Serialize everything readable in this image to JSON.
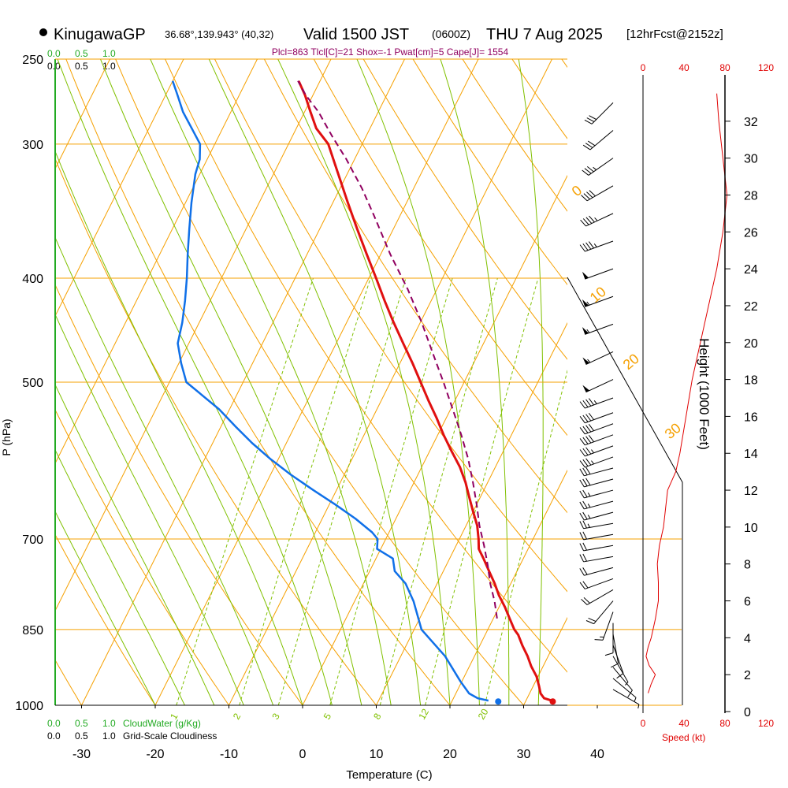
{
  "header": {
    "site_name": "KinugawaGP",
    "site_coords": "36.68°,139.943° (40,32)",
    "valid_main": "Valid 1500 JST",
    "valid_utc": "(0600Z)",
    "valid_date": "THU 7 Aug 2025",
    "forecast_tag": "[12hrFcst@2152z]",
    "indices": "Plcl=863 Tlcl[C]=21 Shox=-1 Pwat[cm]=5 Cape[J]= 1554"
  },
  "colors": {
    "isotherm": "#f5a000",
    "dry_adiabat": "#f5a000",
    "moist_adiabat": "#80c000",
    "mixing_ratio": "#80c000",
    "temperature": "#e01010",
    "dewpoint": "#1070e8",
    "parcel": "#900060",
    "indices": "#900060",
    "cloud_scale": "#22aa22",
    "wind": "#000000",
    "speed": "#e00000"
  },
  "chart_data": {
    "type": "line",
    "title": "Skew-T log-P sounding",
    "xlabel": "Temperature (C)",
    "ylabel": "P (hPa)",
    "xlim": [
      -35,
      45
    ],
    "ylim": [
      1000,
      250
    ],
    "x_ticks": [
      "-30",
      "-20",
      "-10",
      "0",
      "10",
      "20",
      "30",
      "40"
    ],
    "x_tick_values": [
      -30,
      -20,
      -10,
      0,
      10,
      20,
      30,
      40
    ],
    "p_ticks": [
      "250",
      "300",
      "400",
      "500",
      "700",
      "850",
      "1000"
    ],
    "p_tick_values": [
      250,
      300,
      400,
      500,
      700,
      850,
      1000
    ],
    "isotherm_labels": [
      {
        "text": "10",
        "value": 10
      },
      {
        "text": "0",
        "value": 0
      },
      {
        "text": "-10",
        "value": -10
      },
      {
        "text": "-20",
        "value": -20
      },
      {
        "text": "-30",
        "value": -30
      }
    ],
    "dry_adiabat_labels": [
      "0",
      "10",
      "20",
      "30"
    ],
    "mixing_ratio_labels": [
      "1",
      "2",
      "3",
      "5",
      "8",
      "12",
      "20"
    ],
    "series": [
      {
        "name": "temperature",
        "pressure": [
          990,
          985,
          975,
          960,
          940,
          920,
          900,
          880,
          860,
          850,
          830,
          810,
          790,
          770,
          750,
          730,
          715,
          700,
          680,
          660,
          640,
          620,
          600,
          580,
          560,
          540,
          520,
          500,
          480,
          460,
          440,
          420,
          400,
          380,
          360,
          340,
          320,
          300,
          290,
          280,
          270,
          262
        ],
        "temp_c": [
          33.5,
          32.3,
          31.5,
          30.8,
          29.8,
          28.4,
          27.2,
          25.8,
          24.5,
          23.6,
          22.2,
          20.8,
          19.2,
          17.8,
          16.2,
          14.6,
          13.3,
          12.6,
          11.5,
          10.0,
          8.5,
          7.0,
          5.2,
          3.0,
          0.8,
          -1.3,
          -3.6,
          -5.9,
          -8.3,
          -10.9,
          -13.6,
          -16.3,
          -19.0,
          -21.9,
          -24.9,
          -28.0,
          -31.2,
          -34.6,
          -37.3,
          -39.2,
          -41.1,
          -42.9
        ]
      },
      {
        "name": "dewpoint",
        "pressure": [
          990,
          985,
          975,
          950,
          900,
          850,
          800,
          770,
          750,
          730,
          715,
          700,
          690,
          670,
          650,
          630,
          610,
          590,
          570,
          550,
          530,
          500,
          480,
          460,
          440,
          420,
          400,
          380,
          360,
          340,
          320,
          310,
          300,
          290,
          280,
          270,
          262
        ],
        "temp_c": [
          24.9,
          23.3,
          21.8,
          19.8,
          16.0,
          11.0,
          8.0,
          5.7,
          3.4,
          2.3,
          -0.5,
          -1.1,
          -2.3,
          -5.5,
          -9.2,
          -13.2,
          -17.2,
          -21.0,
          -24.6,
          -28.0,
          -31.4,
          -37.7,
          -39.7,
          -41.5,
          -42.3,
          -43.4,
          -44.7,
          -46.2,
          -47.7,
          -49.2,
          -50.6,
          -51.0,
          -52.0,
          -54.2,
          -56.5,
          -58.4,
          -60.0
        ]
      },
      {
        "name": "parcel",
        "pressure": [
          830,
          800,
          770,
          740,
          710,
          680,
          650,
          620,
          590,
          560,
          530,
          500,
          470,
          440,
          410,
          380,
          350,
          330,
          310,
          295,
          280,
          270,
          262
        ],
        "temp_c": [
          20.5,
          19.0,
          17.2,
          15.6,
          13.8,
          11.8,
          10.0,
          8.0,
          5.8,
          3.2,
          0.3,
          -2.8,
          -6.2,
          -9.8,
          -13.9,
          -18.7,
          -23.5,
          -27.0,
          -31.1,
          -34.6,
          -38.1,
          -41.0,
          -43.0
        ]
      }
    ],
    "surface_points": [
      {
        "name": "surface-temperature",
        "temp_c": 33.7,
        "pressure": 992
      },
      {
        "name": "surface-dewpoint",
        "temp_c": 26.3,
        "pressure": 992
      }
    ],
    "height_axis": {
      "label": "Height (1000 Feet)",
      "ticks": [
        "0",
        "2",
        "4",
        "6",
        "8",
        "10",
        "12",
        "14",
        "16",
        "18",
        "20",
        "22",
        "24",
        "26",
        "28",
        "30",
        "32"
      ],
      "tick_values": [
        0,
        2,
        4,
        6,
        8,
        10,
        12,
        14,
        16,
        18,
        20,
        22,
        24,
        26,
        28,
        30,
        32
      ],
      "max": 34
    },
    "wind_speed_profile": {
      "axis_label": "Speed (kt)",
      "ticks": [
        "0",
        "40",
        "80",
        "120"
      ],
      "tick_values": [
        0,
        40,
        80,
        120
      ],
      "height_kft": [
        1.0,
        1.5,
        2.0,
        2.5,
        3.0,
        3.5,
        4.0,
        5.0,
        6.0,
        7.0,
        8.0,
        9.0,
        10.0,
        11.0,
        12.0,
        13.0,
        14.0,
        16.0,
        18.0,
        20.0,
        22.0,
        24.0,
        26.0,
        28.0,
        30.0,
        32.0,
        33.5
      ],
      "speed_kt": [
        5,
        8,
        12,
        6,
        3,
        5,
        8,
        12,
        15,
        15,
        14,
        16,
        20,
        22,
        24,
        32,
        36,
        42,
        48,
        56,
        64,
        72,
        78,
        82,
        78,
        74,
        72
      ]
    },
    "wind_barbs": {
      "height_kft": [
        1.2,
        1.8,
        2.4,
        3.0,
        3.6,
        4.2,
        4.8,
        5.4,
        6.0,
        6.6,
        7.2,
        7.8,
        8.4,
        9.0,
        9.6,
        10.2,
        10.8,
        11.4,
        12.0,
        12.6,
        13.2,
        13.8,
        14.4,
        15.0,
        15.6,
        16.2,
        17.0,
        18.0,
        19.5,
        21.0,
        22.5,
        24.0,
        25.5,
        27.0,
        28.5,
        30.0,
        31.5,
        33.0
      ],
      "dir_deg": [
        120,
        130,
        140,
        150,
        160,
        170,
        180,
        200,
        220,
        240,
        250,
        255,
        260,
        260,
        260,
        260,
        255,
        255,
        255,
        255,
        255,
        250,
        250,
        250,
        250,
        250,
        250,
        245,
        245,
        250,
        250,
        250,
        250,
        245,
        240,
        235,
        230,
        225
      ],
      "speed_kt": [
        5,
        5,
        10,
        5,
        10,
        10,
        10,
        15,
        20,
        20,
        20,
        20,
        20,
        20,
        20,
        25,
        25,
        25,
        25,
        30,
        30,
        35,
        35,
        40,
        40,
        40,
        45,
        50,
        55,
        55,
        55,
        50,
        45,
        45,
        40,
        35,
        30,
        30
      ]
    },
    "cloud_water": {
      "label": "CloudWater (g/Kg)",
      "ticks": [
        "0.0",
        "0.5",
        "1.0"
      ]
    },
    "cloudiness": {
      "label": "Grid-Scale Cloudiness",
      "ticks": [
        "0.0",
        "0.5",
        "1.0"
      ]
    }
  }
}
